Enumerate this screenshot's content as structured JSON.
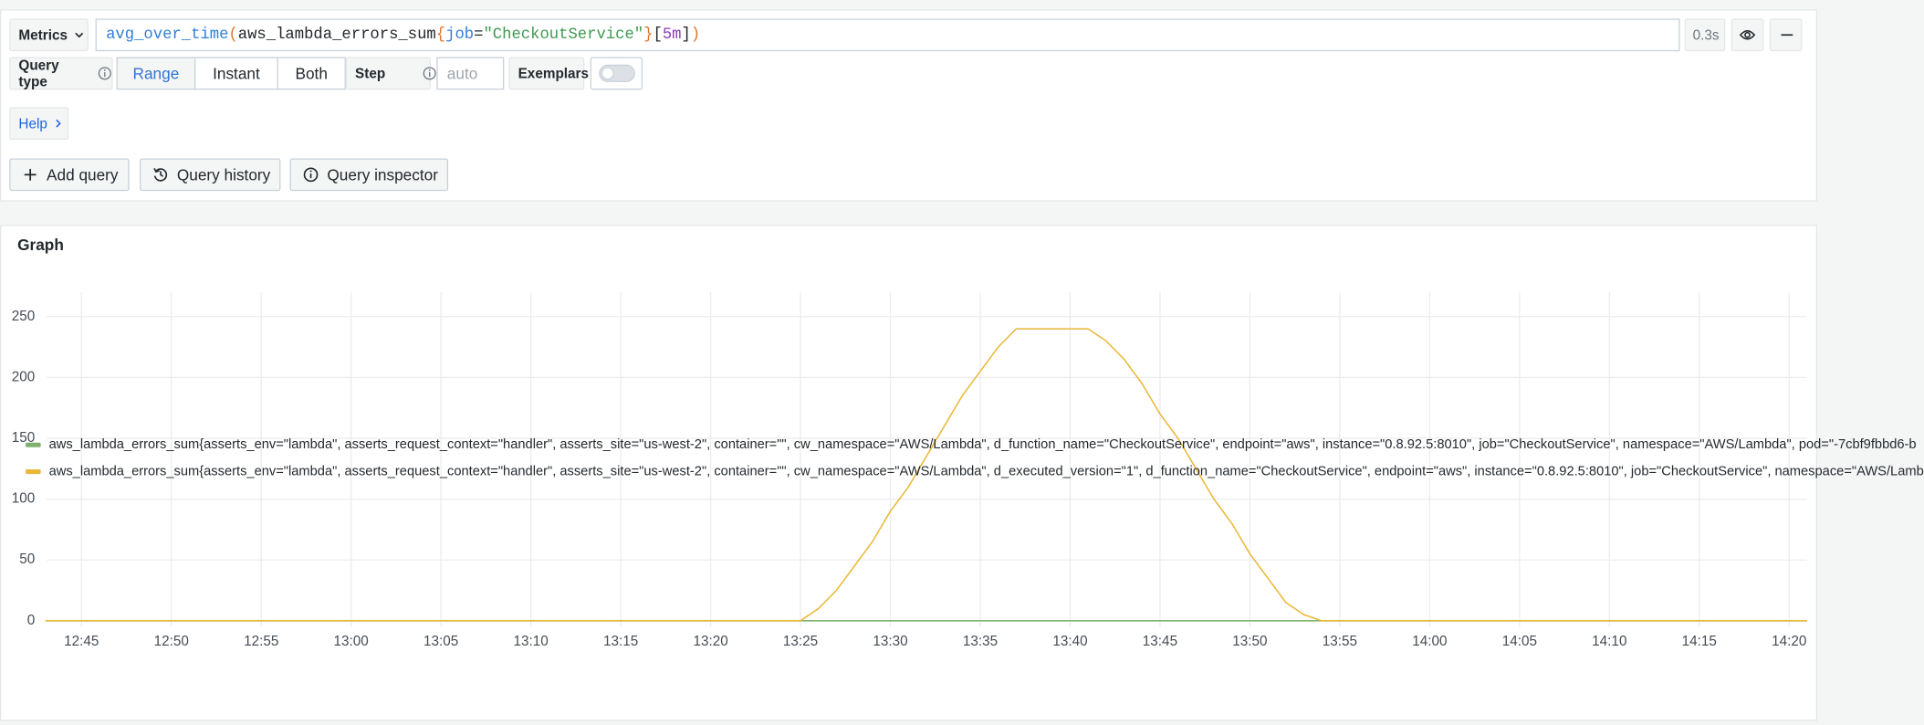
{
  "query_editor": {
    "mode": "Metrics",
    "query_tokens": [
      {
        "text": "avg_over_time",
        "color": "#2f7fd6"
      },
      {
        "text": "(",
        "color": "#e0752d"
      },
      {
        "text": "aws_lambda_errors_sum",
        "color": "#24292e"
      },
      {
        "text": "{",
        "color": "#e0752d"
      },
      {
        "text": "job",
        "color": "#2f7fd6"
      },
      {
        "text": "=",
        "color": "#24292e"
      },
      {
        "text": "\"CheckoutService\"",
        "color": "#3d9a50"
      },
      {
        "text": "}",
        "color": "#e0752d"
      },
      {
        "text": "[",
        "color": "#24292e"
      },
      {
        "text": "5m",
        "color": "#8a3fb8"
      },
      {
        "text": "]",
        "color": "#24292e"
      },
      {
        "text": ")",
        "color": "#e0752d"
      }
    ],
    "duration": "0.3s",
    "query_type_label": "Query type",
    "query_type_options": [
      "Range",
      "Instant",
      "Both"
    ],
    "selected_query_type": "Range",
    "step_label": "Step",
    "step_placeholder": "auto",
    "exemplars_label": "Exemplars",
    "exemplars_enabled": false,
    "help_label": "Help"
  },
  "actions": [
    "Add query",
    "Query history",
    "Query inspector"
  ],
  "chart_data": {
    "type": "line",
    "title": "Graph",
    "x": [
      "12:43",
      "13:25",
      "13:26",
      "13:27",
      "13:28",
      "13:29",
      "13:30",
      "13:31",
      "13:32",
      "13:33",
      "13:34",
      "13:35",
      "13:36",
      "13:37",
      "13:38",
      "13:39",
      "13:40",
      "13:41",
      "13:42",
      "13:43",
      "13:44",
      "13:45",
      "13:46",
      "13:47",
      "13:48",
      "13:49",
      "13:50",
      "13:51",
      "13:52",
      "13:53",
      "13:54",
      "14:21"
    ],
    "series": [
      {
        "name": "aws_lambda_errors_sum{asserts_env=\"lambda\", asserts_request_context=\"handler\", asserts_site=\"us-west-2\", container=\"\", cw_namespace=\"AWS/Lambda\", d_function_name=\"CheckoutService\", endpoint=\"aws\", instance=\"0.8.92.5:8010\", job=\"CheckoutService\", namespace=\"AWS/Lambda\", pod=\"-7cbf9fbbd6-b",
        "color": "#7eb26d",
        "values": [
          0,
          0,
          0,
          0,
          0,
          0,
          0,
          0,
          0,
          0,
          0,
          0,
          0,
          0,
          0,
          0,
          0,
          0,
          0,
          0,
          0,
          0,
          0,
          0,
          0,
          0,
          0,
          0,
          0,
          0,
          0,
          0
        ]
      },
      {
        "name": "aws_lambda_errors_sum{asserts_env=\"lambda\", asserts_request_context=\"handler\", asserts_site=\"us-west-2\", container=\"\", cw_namespace=\"AWS/Lambda\", d_executed_version=\"1\", d_function_name=\"CheckoutService\", endpoint=\"aws\", instance=\"0.8.92.5:8010\", job=\"CheckoutService\", namespace=\"AWS/Lamb",
        "color": "#eab839",
        "values": [
          0,
          0,
          10,
          25,
          45,
          65,
          90,
          110,
          135,
          160,
          185,
          205,
          225,
          240,
          240,
          240,
          240,
          240,
          230,
          215,
          195,
          170,
          150,
          125,
          100,
          80,
          55,
          35,
          15,
          5,
          0,
          0
        ]
      }
    ],
    "xlim": [
      "12:43",
      "14:21"
    ],
    "xticks": [
      "12:45",
      "12:50",
      "12:55",
      "13:00",
      "13:05",
      "13:10",
      "13:15",
      "13:20",
      "13:25",
      "13:30",
      "13:35",
      "13:40",
      "13:45",
      "13:50",
      "13:55",
      "14:00",
      "14:05",
      "14:10",
      "14:15",
      "14:20"
    ],
    "ylim": [
      -5,
      270
    ],
    "yticks": [
      0,
      50,
      100,
      150,
      200,
      250
    ],
    "grid": true
  }
}
